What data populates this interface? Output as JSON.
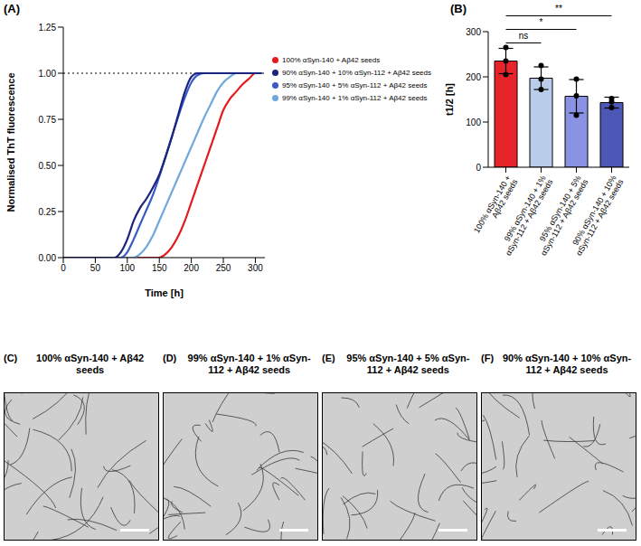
{
  "chart_data": [
    {
      "panel_label": "(A)",
      "type": "line",
      "xlabel": "Time [h]",
      "ylabel": "Normalised ThT fluorescence",
      "x": [
        0,
        10,
        20,
        30,
        40,
        50,
        60,
        70,
        80,
        90,
        100,
        110,
        120,
        130,
        140,
        150,
        160,
        170,
        180,
        190,
        200,
        210,
        220,
        230,
        240,
        250,
        260,
        270,
        280,
        290,
        300,
        310
      ],
      "series": [
        {
          "name": "100% αSyn-140 + Aβ42 seeds",
          "color": "#e41a1c",
          "values": [
            0,
            0,
            0,
            0,
            0,
            0,
            0,
            0,
            0,
            0,
            0,
            0,
            0,
            0,
            0,
            0,
            0.02,
            0.06,
            0.12,
            0.2,
            0.3,
            0.4,
            0.5,
            0.6,
            0.7,
            0.8,
            0.86,
            0.9,
            0.94,
            0.97,
            1,
            1
          ]
        },
        {
          "name": "99% αSyn-140 + 1% αSyn-112 + Aβ42 seeds",
          "color": "#6fa8dc",
          "values": [
            0,
            0,
            0,
            0,
            0,
            0,
            0,
            0,
            0,
            0,
            0,
            0,
            0.02,
            0.06,
            0.12,
            0.2,
            0.28,
            0.36,
            0.44,
            0.52,
            0.6,
            0.68,
            0.76,
            0.83,
            0.9,
            0.95,
            0.98,
            1,
            1,
            null,
            null,
            null
          ]
        },
        {
          "name": "95% αSyn-140 + 5% αSyn-112 + Aβ42 seeds",
          "color": "#3a5bc7",
          "values": [
            0,
            0,
            0,
            0,
            0,
            0,
            0,
            0,
            0,
            0,
            0.03,
            0.1,
            0.18,
            0.26,
            0.34,
            0.44,
            0.55,
            0.66,
            0.77,
            0.87,
            0.95,
            0.99,
            1,
            1,
            1,
            1,
            1,
            1,
            1,
            1,
            1,
            1
          ]
        },
        {
          "name": "90% αSyn-140 + 10% αSyn-112 + Aβ42 seeds",
          "color": "#1a237e",
          "values": [
            0,
            0,
            0,
            0,
            0,
            0,
            0,
            0,
            0,
            0.03,
            0.1,
            0.2,
            0.27,
            0.32,
            0.38,
            0.45,
            0.55,
            0.66,
            0.78,
            0.9,
            0.98,
            1,
            1,
            1,
            1,
            1,
            1,
            1,
            1,
            1,
            1,
            1
          ]
        }
      ],
      "xlim": [
        0,
        315
      ],
      "xticks": [
        0,
        50,
        100,
        150,
        200,
        250,
        300
      ],
      "ylim": [
        0,
        1.25
      ],
      "yticks": [
        {
          "value": 0,
          "label": "0.00"
        },
        {
          "value": 0.25,
          "label": "0.25"
        },
        {
          "value": 0.5,
          "label": "0.50"
        },
        {
          "value": 0.75,
          "label": "0.75"
        },
        {
          "value": 1,
          "label": "1.00"
        },
        {
          "value": 1.25,
          "label": "1.25"
        }
      ],
      "reference_y": 1,
      "legend": "right"
    },
    {
      "panel_label": "(B)",
      "type": "bar",
      "ylabel": "t1/2 [h]",
      "categories": [
        "100% αSyn-140 + Aβ42 seeds",
        "99% αSyn-140 + 1% αSyn-112 + Aβ42 seeds",
        "95% αSyn-140 + 5% αSyn-112 + Aβ42 seeds",
        "90% αSyn-140 + 10% αSyn-112 + Aβ42 seeds"
      ],
      "values": [
        235,
        197,
        157,
        143
      ],
      "errors": [
        28,
        25,
        37,
        12
      ],
      "points": [
        [
          265,
          235,
          205
        ],
        [
          225,
          195,
          172
        ],
        [
          195,
          158,
          115
        ],
        [
          152,
          145,
          132
        ]
      ],
      "colors": [
        "#e8242b",
        "#b9cdeb",
        "#8a93e3",
        "#4d57b5"
      ],
      "ylim": [
        0,
        300
      ],
      "yticks": [
        0,
        100,
        200,
        300
      ],
      "comparisons": [
        {
          "from": "100% αSyn-140 + Aβ42 seeds",
          "to": "99% αSyn-140 + 1% αSyn-112 + Aβ42 seeds",
          "y": 275,
          "label": "ns"
        },
        {
          "from": "100% αSyn-140 + Aβ42 seeds",
          "to": "95% αSyn-140 + 5% αSyn-112 + Aβ42 seeds",
          "y": 305,
          "label": "*"
        },
        {
          "from": "100% αSyn-140 + Aβ42 seeds",
          "to": "90% αSyn-140 + 10% αSyn-112 + Aβ42 seeds",
          "y": 335,
          "label": "**"
        }
      ]
    }
  ],
  "images": [
    {
      "panel_label": "(C)",
      "title": "100% αSyn-140 + Aβ42 seeds"
    },
    {
      "panel_label": "(D)",
      "title": "99% αSyn-140 + 1% αSyn-112 + Aβ42 seeds"
    },
    {
      "panel_label": "(E)",
      "title": "95% αSyn-140 + 5% αSyn-112 + Aβ42 seeds"
    },
    {
      "panel_label": "(F)",
      "title": "90% αSyn-140 + 10% αSyn-112 + Aβ42 seeds"
    }
  ]
}
